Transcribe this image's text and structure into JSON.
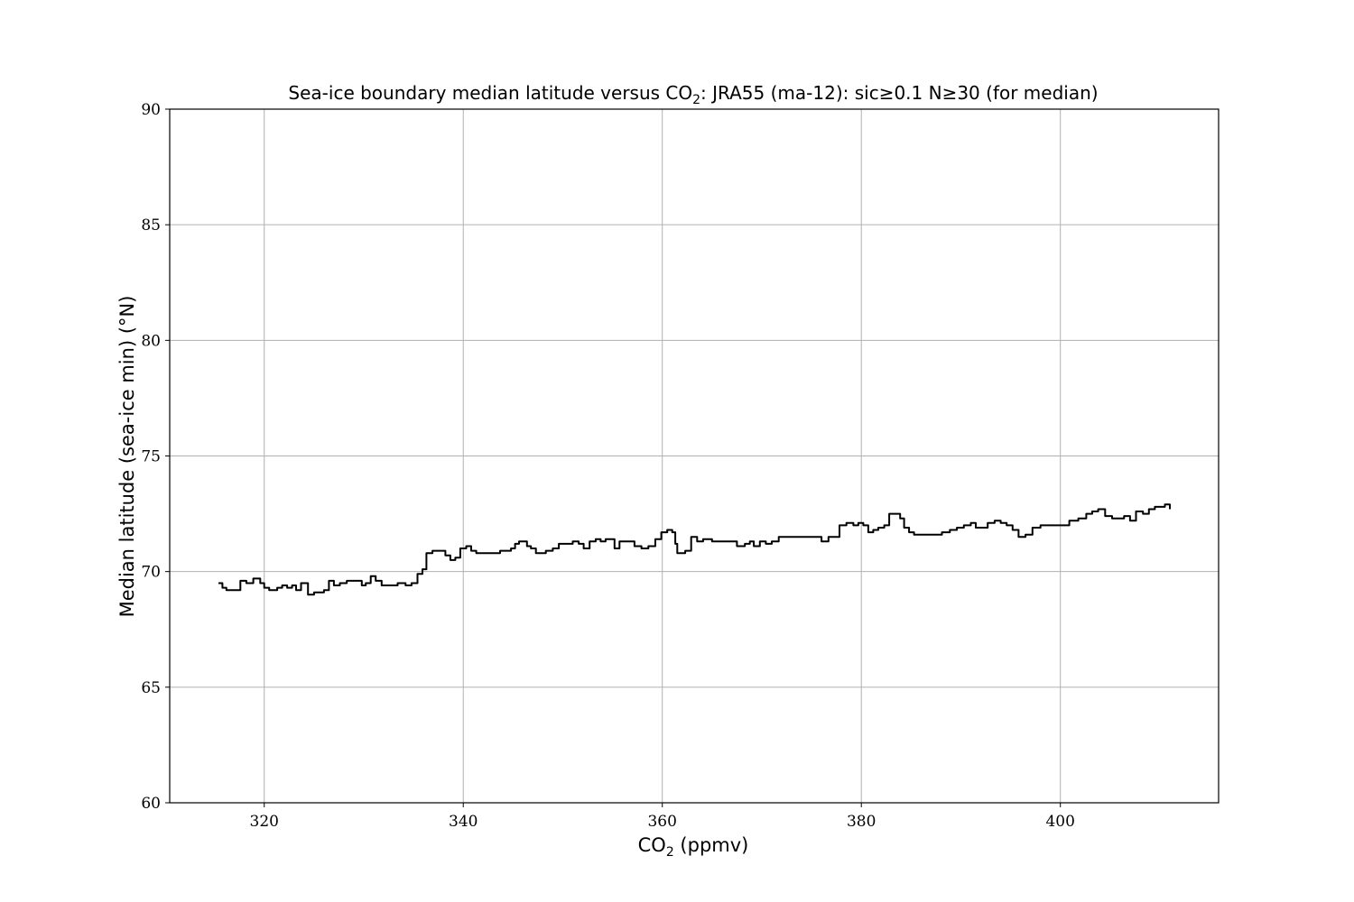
{
  "chart_data": {
    "type": "line",
    "title_parts": {
      "before_sub": "Sea-ice boundary median latitude versus CO",
      "sub": "2",
      "after_sub": ": JRA55 (ma-12): sic≥0.1 N≥30 (for median)"
    },
    "xlabel_parts": {
      "before_sub": "CO",
      "sub": "2",
      "after_sub": " (ppmv)"
    },
    "ylabel": "Median latitude (sea-ice min) (°N)",
    "xlim": [
      310.5,
      415.9
    ],
    "ylim": [
      60,
      90
    ],
    "xticks": [
      320,
      340,
      360,
      380,
      400
    ],
    "yticks": [
      60,
      65,
      70,
      75,
      80,
      85,
      90
    ],
    "grid": true,
    "series": [
      {
        "color": "#000000",
        "points": [
          [
            315.4,
            69.5
          ],
          [
            315.8,
            69.3
          ],
          [
            316.2,
            69.2
          ],
          [
            317.0,
            69.2
          ],
          [
            317.6,
            69.6
          ],
          [
            318.2,
            69.5
          ],
          [
            318.9,
            69.7
          ],
          [
            319.6,
            69.5
          ],
          [
            320.0,
            69.3
          ],
          [
            320.5,
            69.2
          ],
          [
            321.3,
            69.3
          ],
          [
            321.8,
            69.4
          ],
          [
            322.3,
            69.3
          ],
          [
            322.8,
            69.4
          ],
          [
            323.2,
            69.2
          ],
          [
            323.7,
            69.5
          ],
          [
            324.4,
            69.0
          ],
          [
            325.0,
            69.1
          ],
          [
            326.0,
            69.2
          ],
          [
            326.5,
            69.6
          ],
          [
            327.0,
            69.4
          ],
          [
            327.6,
            69.5
          ],
          [
            328.3,
            69.6
          ],
          [
            329.2,
            69.6
          ],
          [
            329.8,
            69.4
          ],
          [
            330.2,
            69.5
          ],
          [
            330.7,
            69.8
          ],
          [
            331.2,
            69.6
          ],
          [
            331.8,
            69.4
          ],
          [
            332.5,
            69.4
          ],
          [
            333.4,
            69.5
          ],
          [
            334.2,
            69.4
          ],
          [
            334.8,
            69.5
          ],
          [
            335.4,
            69.9
          ],
          [
            335.9,
            70.1
          ],
          [
            336.3,
            70.8
          ],
          [
            336.9,
            70.9
          ],
          [
            337.6,
            70.9
          ],
          [
            338.2,
            70.7
          ],
          [
            338.7,
            70.5
          ],
          [
            339.2,
            70.6
          ],
          [
            339.7,
            71.0
          ],
          [
            340.3,
            71.1
          ],
          [
            340.8,
            70.9
          ],
          [
            341.3,
            70.8
          ],
          [
            342.0,
            70.8
          ],
          [
            343.0,
            70.8
          ],
          [
            343.7,
            70.9
          ],
          [
            344.3,
            70.9
          ],
          [
            344.8,
            71.0
          ],
          [
            345.2,
            71.2
          ],
          [
            345.6,
            71.3
          ],
          [
            346.0,
            71.3
          ],
          [
            346.4,
            71.1
          ],
          [
            346.8,
            71.0
          ],
          [
            347.3,
            70.8
          ],
          [
            347.8,
            70.8
          ],
          [
            348.3,
            70.9
          ],
          [
            349.0,
            71.0
          ],
          [
            349.6,
            71.2
          ],
          [
            350.3,
            71.2
          ],
          [
            351.0,
            71.3
          ],
          [
            351.6,
            71.2
          ],
          [
            352.1,
            71.0
          ],
          [
            352.7,
            71.3
          ],
          [
            353.3,
            71.4
          ],
          [
            353.8,
            71.3
          ],
          [
            354.3,
            71.4
          ],
          [
            354.9,
            71.4
          ],
          [
            355.2,
            71.0
          ],
          [
            355.7,
            71.3
          ],
          [
            356.2,
            71.3
          ],
          [
            356.7,
            71.3
          ],
          [
            357.2,
            71.1
          ],
          [
            357.9,
            71.0
          ],
          [
            358.6,
            71.1
          ],
          [
            359.3,
            71.4
          ],
          [
            359.9,
            71.7
          ],
          [
            360.5,
            71.8
          ],
          [
            361.0,
            71.7
          ],
          [
            361.3,
            71.2
          ],
          [
            361.5,
            70.8
          ],
          [
            362.3,
            70.9
          ],
          [
            362.9,
            71.5
          ],
          [
            363.5,
            71.3
          ],
          [
            364.1,
            71.4
          ],
          [
            365.0,
            71.3
          ],
          [
            366.0,
            71.3
          ],
          [
            367.0,
            71.3
          ],
          [
            367.5,
            71.1
          ],
          [
            368.3,
            71.2
          ],
          [
            368.8,
            71.3
          ],
          [
            369.2,
            71.1
          ],
          [
            369.8,
            71.3
          ],
          [
            370.4,
            71.2
          ],
          [
            371.0,
            71.3
          ],
          [
            371.7,
            71.5
          ],
          [
            372.5,
            71.5
          ],
          [
            373.5,
            71.5
          ],
          [
            374.5,
            71.5
          ],
          [
            375.5,
            71.5
          ],
          [
            376.0,
            71.3
          ],
          [
            376.7,
            71.5
          ],
          [
            377.3,
            71.5
          ],
          [
            377.8,
            72.0
          ],
          [
            378.5,
            72.1
          ],
          [
            379.2,
            72.0
          ],
          [
            379.7,
            72.1
          ],
          [
            380.2,
            72.0
          ],
          [
            380.7,
            71.7
          ],
          [
            381.2,
            71.8
          ],
          [
            381.7,
            71.9
          ],
          [
            382.3,
            72.0
          ],
          [
            382.8,
            72.5
          ],
          [
            383.4,
            72.5
          ],
          [
            383.9,
            72.3
          ],
          [
            384.3,
            71.9
          ],
          [
            384.8,
            71.7
          ],
          [
            385.3,
            71.6
          ],
          [
            386.0,
            71.6
          ],
          [
            386.7,
            71.6
          ],
          [
            387.4,
            71.6
          ],
          [
            388.1,
            71.7
          ],
          [
            388.9,
            71.8
          ],
          [
            389.6,
            71.9
          ],
          [
            390.3,
            72.0
          ],
          [
            391.0,
            72.1
          ],
          [
            391.5,
            71.9
          ],
          [
            392.2,
            71.9
          ],
          [
            392.7,
            72.1
          ],
          [
            393.4,
            72.2
          ],
          [
            394.0,
            72.1
          ],
          [
            394.6,
            72.0
          ],
          [
            395.2,
            71.8
          ],
          [
            395.8,
            71.5
          ],
          [
            396.5,
            71.6
          ],
          [
            397.2,
            71.9
          ],
          [
            398.0,
            72.0
          ],
          [
            399.0,
            72.0
          ],
          [
            400.2,
            72.0
          ],
          [
            400.9,
            72.2
          ],
          [
            401.8,
            72.3
          ],
          [
            402.6,
            72.5
          ],
          [
            403.2,
            72.6
          ],
          [
            403.8,
            72.7
          ],
          [
            404.5,
            72.4
          ],
          [
            405.2,
            72.3
          ],
          [
            405.8,
            72.3
          ],
          [
            406.4,
            72.4
          ],
          [
            407.0,
            72.2
          ],
          [
            407.6,
            72.6
          ],
          [
            408.3,
            72.5
          ],
          [
            408.9,
            72.7
          ],
          [
            409.5,
            72.8
          ],
          [
            410.0,
            72.8
          ],
          [
            410.5,
            72.9
          ],
          [
            411.0,
            72.7
          ]
        ]
      }
    ]
  }
}
